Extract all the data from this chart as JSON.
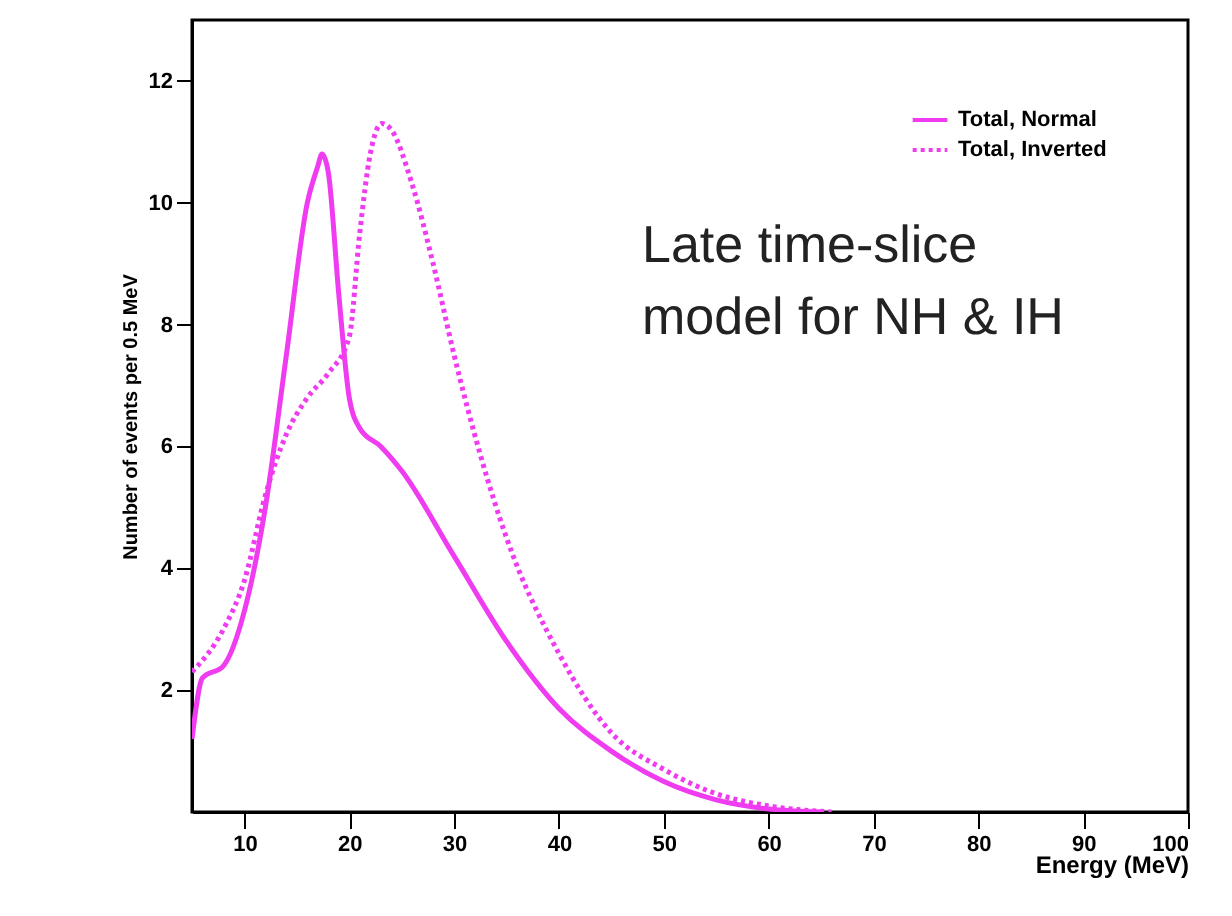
{
  "chart_data": {
    "type": "line",
    "xlabel": "Energy (MeV)",
    "ylabel": "Number of events per 0.5 MeV",
    "xlim": [
      5,
      100
    ],
    "ylim": [
      0,
      13
    ],
    "xticks": [
      10,
      20,
      30,
      40,
      50,
      60,
      70,
      80,
      90,
      100
    ],
    "yticks": [
      2,
      4,
      6,
      8,
      10,
      12
    ],
    "grid": false,
    "legend": "top right",
    "marker": "none",
    "annotations": [
      "Late time-slice\nmodel for NH & IH"
    ],
    "series": [
      {
        "name": "Total, Normal",
        "color": "#f03cf0",
        "line_style": "solid",
        "x": [
          5,
          6,
          8,
          10,
          12,
          14,
          16,
          17,
          17.4,
          18,
          19,
          20,
          21,
          23,
          25,
          30,
          35,
          40,
          45,
          50,
          55,
          60,
          65
        ],
        "values": [
          1.2,
          2.2,
          2.4,
          3.3,
          5,
          7.5,
          10,
          10.6,
          10.8,
          10.5,
          8.5,
          6.8,
          6.3,
          6.0,
          5.6,
          4.2,
          2.8,
          1.7,
          1.0,
          0.5,
          0.2,
          0.05,
          0
        ]
      },
      {
        "name": "Total, Inverted",
        "color": "#f03cf0",
        "line_style": "dotted",
        "x": [
          5,
          8,
          10,
          12,
          14,
          16,
          18,
          20,
          21,
          22,
          23.1,
          24,
          26,
          28,
          30,
          35,
          40,
          45,
          50,
          55,
          60,
          66
        ],
        "values": [
          2.3,
          3.0,
          3.8,
          5.2,
          6.2,
          6.8,
          7.2,
          7.8,
          9.5,
          10.8,
          11.3,
          11.2,
          10.3,
          9,
          7.5,
          4.5,
          2.6,
          1.3,
          0.7,
          0.3,
          0.1,
          0
        ]
      }
    ]
  }
}
